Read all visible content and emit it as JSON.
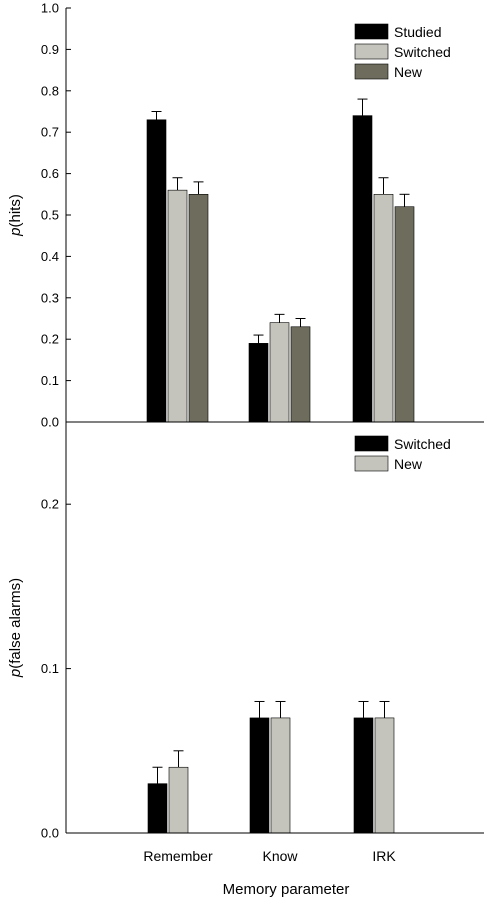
{
  "colors": {
    "studied": "#000000",
    "switched_gray": "#c4c4bc",
    "new_dark": "#6e6c5c",
    "axis": "#000000"
  },
  "chart_data": [
    {
      "type": "bar",
      "ylabel_italic": "p",
      "ylabel_rest": "(hits)",
      "ylim": [
        0,
        1.0
      ],
      "yticks": [
        "0.0",
        "0.1",
        "0.2",
        "0.3",
        "0.4",
        "0.5",
        "0.6",
        "0.7",
        "0.8",
        "0.9",
        "1.0"
      ],
      "categories": [
        "Remember",
        "Know",
        "IRK"
      ],
      "legend_position": "top-right",
      "series": [
        {
          "name": "Studied",
          "values": [
            0.73,
            0.19,
            0.74
          ],
          "errors": [
            0.02,
            0.02,
            0.04
          ]
        },
        {
          "name": "Switched",
          "values": [
            0.56,
            0.24,
            0.55
          ],
          "errors": [
            0.03,
            0.02,
            0.04
          ]
        },
        {
          "name": "New",
          "values": [
            0.55,
            0.23,
            0.52
          ],
          "errors": [
            0.03,
            0.02,
            0.03
          ]
        }
      ]
    },
    {
      "type": "bar",
      "ylabel_italic": "p",
      "ylabel_rest": "(false alarms)",
      "ylim": [
        0,
        0.25
      ],
      "yticks": [
        "0.0",
        "0.1",
        "0.2"
      ],
      "categories": [
        "Remember",
        "Know",
        "IRK"
      ],
      "xlabel": "Memory parameter",
      "legend_position": "top-right",
      "series": [
        {
          "name": "Switched",
          "values": [
            0.03,
            0.07,
            0.07
          ],
          "errors": [
            0.01,
            0.01,
            0.01
          ]
        },
        {
          "name": "New",
          "values": [
            0.04,
            0.07,
            0.07
          ],
          "errors": [
            0.01,
            0.01,
            0.01
          ]
        }
      ]
    }
  ]
}
